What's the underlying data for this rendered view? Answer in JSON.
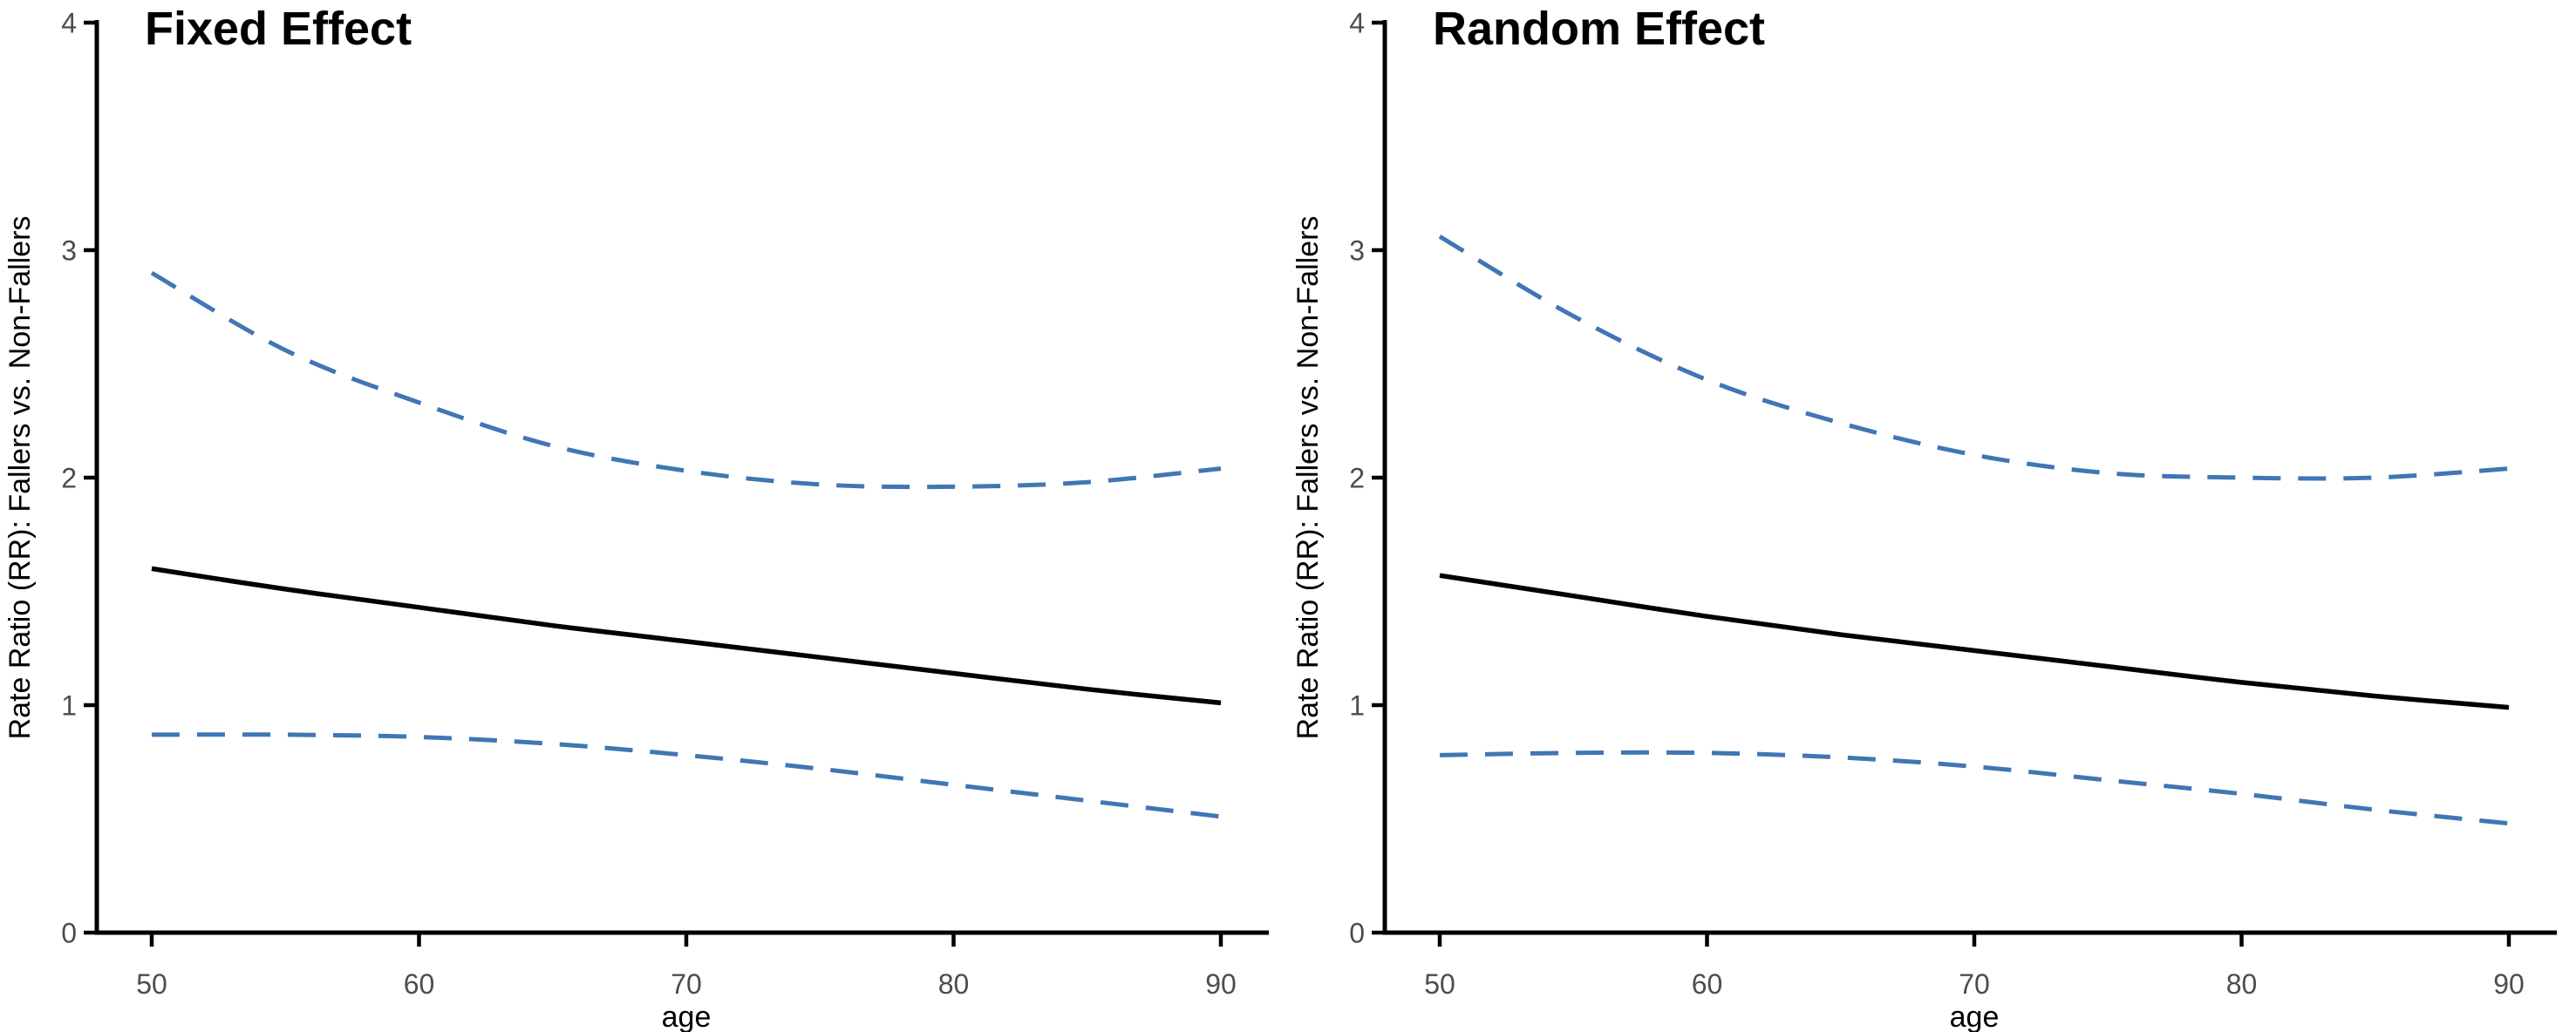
{
  "figure": {
    "background": "#ffffff",
    "panel_count": 2
  },
  "style": {
    "axis_color": "#000000",
    "tick_label_color": "#4d4d4d",
    "axis_title_color": "#000000",
    "panel_title_color": "#000000",
    "estimate_line_color": "#000000",
    "ci_line_color": "#4076b4"
  },
  "chart_data": [
    {
      "type": "line",
      "panel": "left",
      "title": "Fixed Effect",
      "xlabel": "age",
      "ylabel": "Rate Ratio (RR): Fallers vs. Non-Fallers",
      "xlim": [
        50,
        90
      ],
      "ylim": [
        0,
        4
      ],
      "x_ticks": [
        50,
        60,
        70,
        80,
        90
      ],
      "y_ticks": [
        0,
        1,
        2,
        3,
        4
      ],
      "grid": false,
      "legend": "none",
      "x": [
        50,
        55,
        60,
        65,
        70,
        75,
        80,
        85,
        90
      ],
      "series": [
        {
          "name": "rate-ratio-estimate",
          "line_style": "solid",
          "color": "#000000",
          "values": [
            1.6,
            1.51,
            1.43,
            1.35,
            1.28,
            1.21,
            1.14,
            1.07,
            1.01
          ]
        },
        {
          "name": "upper-95ci",
          "line_style": "dashed",
          "color": "#4076b4",
          "values": [
            2.9,
            2.56,
            2.33,
            2.14,
            2.03,
            1.97,
            1.96,
            1.98,
            2.04
          ]
        },
        {
          "name": "lower-95ci",
          "line_style": "dashed",
          "color": "#4076b4",
          "values": [
            0.87,
            0.87,
            0.86,
            0.83,
            0.78,
            0.72,
            0.65,
            0.58,
            0.51
          ]
        }
      ]
    },
    {
      "type": "line",
      "panel": "right",
      "title": "Random Effect",
      "xlabel": "age",
      "ylabel": "Rate Ratio (RR): Fallers vs. Non-Fallers",
      "xlim": [
        50,
        90
      ],
      "ylim": [
        0,
        4
      ],
      "x_ticks": [
        50,
        60,
        70,
        80,
        90
      ],
      "y_ticks": [
        0,
        1,
        2,
        3,
        4
      ],
      "grid": false,
      "legend": "none",
      "x": [
        50,
        55,
        60,
        65,
        70,
        75,
        80,
        85,
        90
      ],
      "series": [
        {
          "name": "rate-ratio-estimate",
          "line_style": "solid",
          "color": "#000000",
          "values": [
            1.57,
            1.48,
            1.39,
            1.31,
            1.24,
            1.17,
            1.1,
            1.04,
            0.99
          ]
        },
        {
          "name": "upper-95ci",
          "line_style": "dashed",
          "color": "#4076b4",
          "values": [
            3.06,
            2.71,
            2.43,
            2.24,
            2.1,
            2.02,
            2.0,
            2.0,
            2.04
          ]
        },
        {
          "name": "lower-95ci",
          "line_style": "dashed",
          "color": "#4076b4",
          "values": [
            0.78,
            0.79,
            0.79,
            0.77,
            0.73,
            0.67,
            0.61,
            0.54,
            0.48
          ]
        }
      ]
    }
  ]
}
